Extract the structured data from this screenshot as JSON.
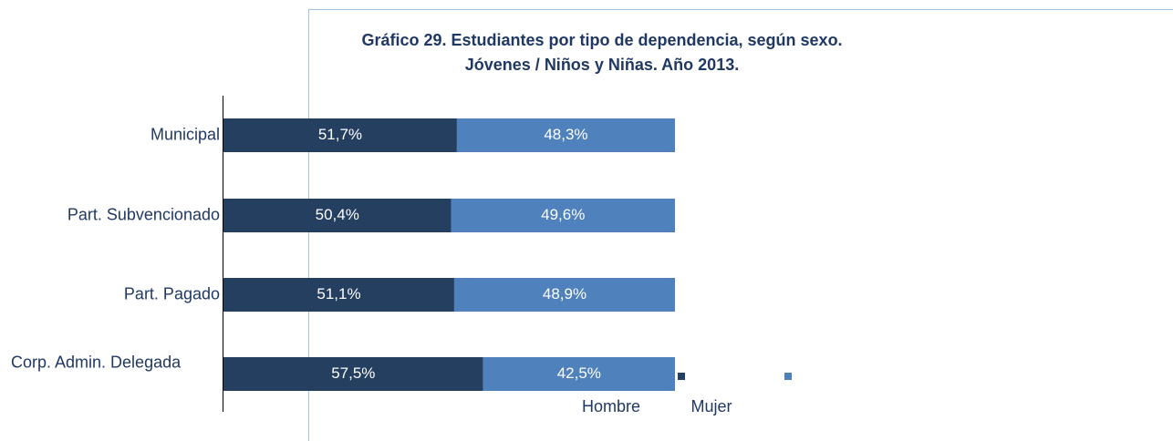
{
  "chart_data": {
    "type": "stacked-barh",
    "title": "Gráfico 29. Estudiantes por tipo de dependencia, según sexo.",
    "subtitle": "Jóvenes / Niños y Niñas. Año 2013.",
    "categories": [
      "Municipal",
      "Part. Subvencionado",
      "Part. Pagado",
      "Corp. Admin. Delegada"
    ],
    "series": [
      {
        "name": "Hombre",
        "color": "#243f60",
        "values": [
          51.7,
          50.4,
          51.1,
          57.5
        ],
        "value_labels": [
          "51,7%",
          "50,4%",
          "51,1%",
          "57,5%"
        ]
      },
      {
        "name": "Mujer",
        "color": "#4f81bd",
        "values": [
          48.3,
          49.6,
          48.9,
          42.5
        ],
        "value_labels": [
          "48,3%",
          "49,6%",
          "48,9%",
          "42,5%"
        ]
      }
    ],
    "xlim": [
      0,
      100
    ]
  }
}
